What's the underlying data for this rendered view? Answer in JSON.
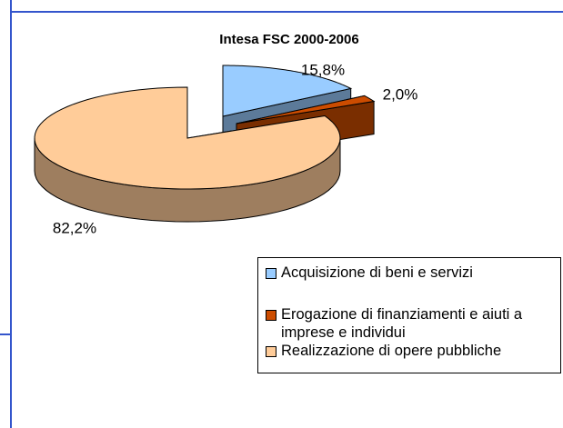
{
  "chart_data": {
    "type": "pie3d",
    "title": "Intesa FSC 2000-2006",
    "categories": [
      "Acquisizione  di beni e servizi",
      "Erogazione di finanziamenti e aiuti a imprese e individui",
      "Realizzazione di opere pubbliche"
    ],
    "values": [
      15.8,
      2.0,
      82.2
    ],
    "value_labels": [
      "15,8%",
      "2,0%",
      "82,2%"
    ],
    "colors": [
      "#99ccff",
      "#cc4c00",
      "#ffcc99"
    ],
    "legend": "right"
  }
}
